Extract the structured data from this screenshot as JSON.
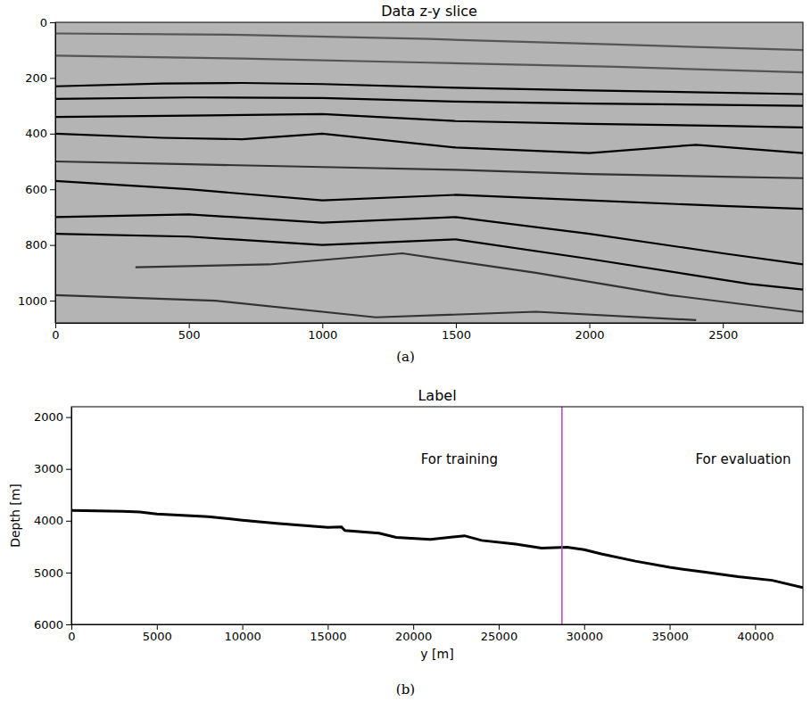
{
  "chart_data": [
    {
      "type": "image",
      "title": "Data z-y slice",
      "caption": "(a)",
      "xlim": [
        0,
        2800
      ],
      "ylim": [
        1080,
        0
      ],
      "xticks": [
        0,
        500,
        1000,
        1500,
        2000,
        2500
      ],
      "yticks": [
        0,
        200,
        400,
        600,
        800,
        1000
      ],
      "grid": false,
      "series": [
        {
          "color": "#555555",
          "x": [
            0,
            700,
            1400,
            2100,
            2800
          ],
          "values": [
            40,
            45,
            60,
            80,
            100
          ]
        },
        {
          "color": "#555555",
          "x": [
            0,
            700,
            1400,
            2100,
            2800
          ],
          "values": [
            120,
            130,
            145,
            160,
            180
          ]
        },
        {
          "color": "#000000",
          "x": [
            0,
            400,
            700,
            1000,
            1500,
            2000,
            2800
          ],
          "values": [
            230,
            220,
            218,
            222,
            235,
            245,
            258
          ]
        },
        {
          "color": "#000000",
          "x": [
            0,
            500,
            1000,
            1500,
            2000,
            2800
          ],
          "values": [
            275,
            270,
            272,
            285,
            292,
            300
          ]
        },
        {
          "color": "#000000",
          "x": [
            0,
            500,
            1000,
            1500,
            2000,
            2500,
            2800
          ],
          "values": [
            340,
            335,
            330,
            355,
            365,
            372,
            378
          ]
        },
        {
          "color": "#000000",
          "x": [
            0,
            400,
            700,
            1000,
            1500,
            2000,
            2400,
            2800
          ],
          "values": [
            400,
            415,
            420,
            400,
            450,
            470,
            440,
            470
          ]
        },
        {
          "color": "#333333",
          "x": [
            0,
            500,
            1000,
            1500,
            2000,
            2500,
            2800
          ],
          "values": [
            500,
            510,
            520,
            530,
            545,
            555,
            560
          ]
        },
        {
          "color": "#000000",
          "x": [
            0,
            500,
            1000,
            1500,
            2000,
            2500,
            2800
          ],
          "values": [
            570,
            600,
            640,
            620,
            640,
            660,
            670
          ]
        },
        {
          "color": "#000000",
          "x": [
            0,
            500,
            1000,
            1500,
            2000,
            2500,
            2800
          ],
          "values": [
            700,
            690,
            720,
            700,
            760,
            830,
            870
          ]
        },
        {
          "color": "#000000",
          "x": [
            0,
            500,
            1000,
            1500,
            2000,
            2600,
            2800
          ],
          "values": [
            760,
            770,
            800,
            780,
            850,
            940,
            960
          ]
        },
        {
          "color": "#333333",
          "x": [
            300,
            800,
            1300,
            1800,
            2300,
            2800
          ],
          "values": [
            880,
            870,
            830,
            900,
            980,
            1040
          ]
        },
        {
          "color": "#333333",
          "x": [
            0,
            600,
            1200,
            1800,
            2400
          ],
          "values": [
            980,
            1000,
            1060,
            1040,
            1070
          ]
        }
      ]
    },
    {
      "type": "line",
      "title": "Label",
      "caption": "(b)",
      "xlabel": "y [m]",
      "ylabel": "Depth [m]",
      "xlim": [
        0,
        42800
      ],
      "ylim": [
        6000,
        1800
      ],
      "xticks": [
        0,
        5000,
        10000,
        15000,
        20000,
        25000,
        30000,
        35000,
        40000
      ],
      "yticks": [
        2000,
        3000,
        4000,
        5000,
        6000
      ],
      "grid": false,
      "series": [
        {
          "color": "#000000",
          "x": [
            0,
            3000,
            4000,
            5000,
            8000,
            10000,
            12000,
            15000,
            15800,
            16000,
            18000,
            19000,
            21000,
            23000,
            24000,
            26000,
            27500,
            29000,
            30000,
            31000,
            33000,
            35000,
            37000,
            39000,
            41000,
            42800
          ],
          "values": [
            3800,
            3820,
            3830,
            3870,
            3920,
            3990,
            4050,
            4130,
            4120,
            4190,
            4240,
            4320,
            4360,
            4290,
            4380,
            4450,
            4530,
            4510,
            4560,
            4640,
            4780,
            4900,
            4990,
            5080,
            5150,
            5290
          ]
        }
      ],
      "vlines": [
        {
          "x": 28700,
          "color": "#c040c0"
        }
      ],
      "annotations": [
        {
          "text": "For training",
          "x": 22700,
          "y": 2900
        },
        {
          "text": "For evaluation",
          "x": 39300,
          "y": 2900
        }
      ]
    }
  ]
}
